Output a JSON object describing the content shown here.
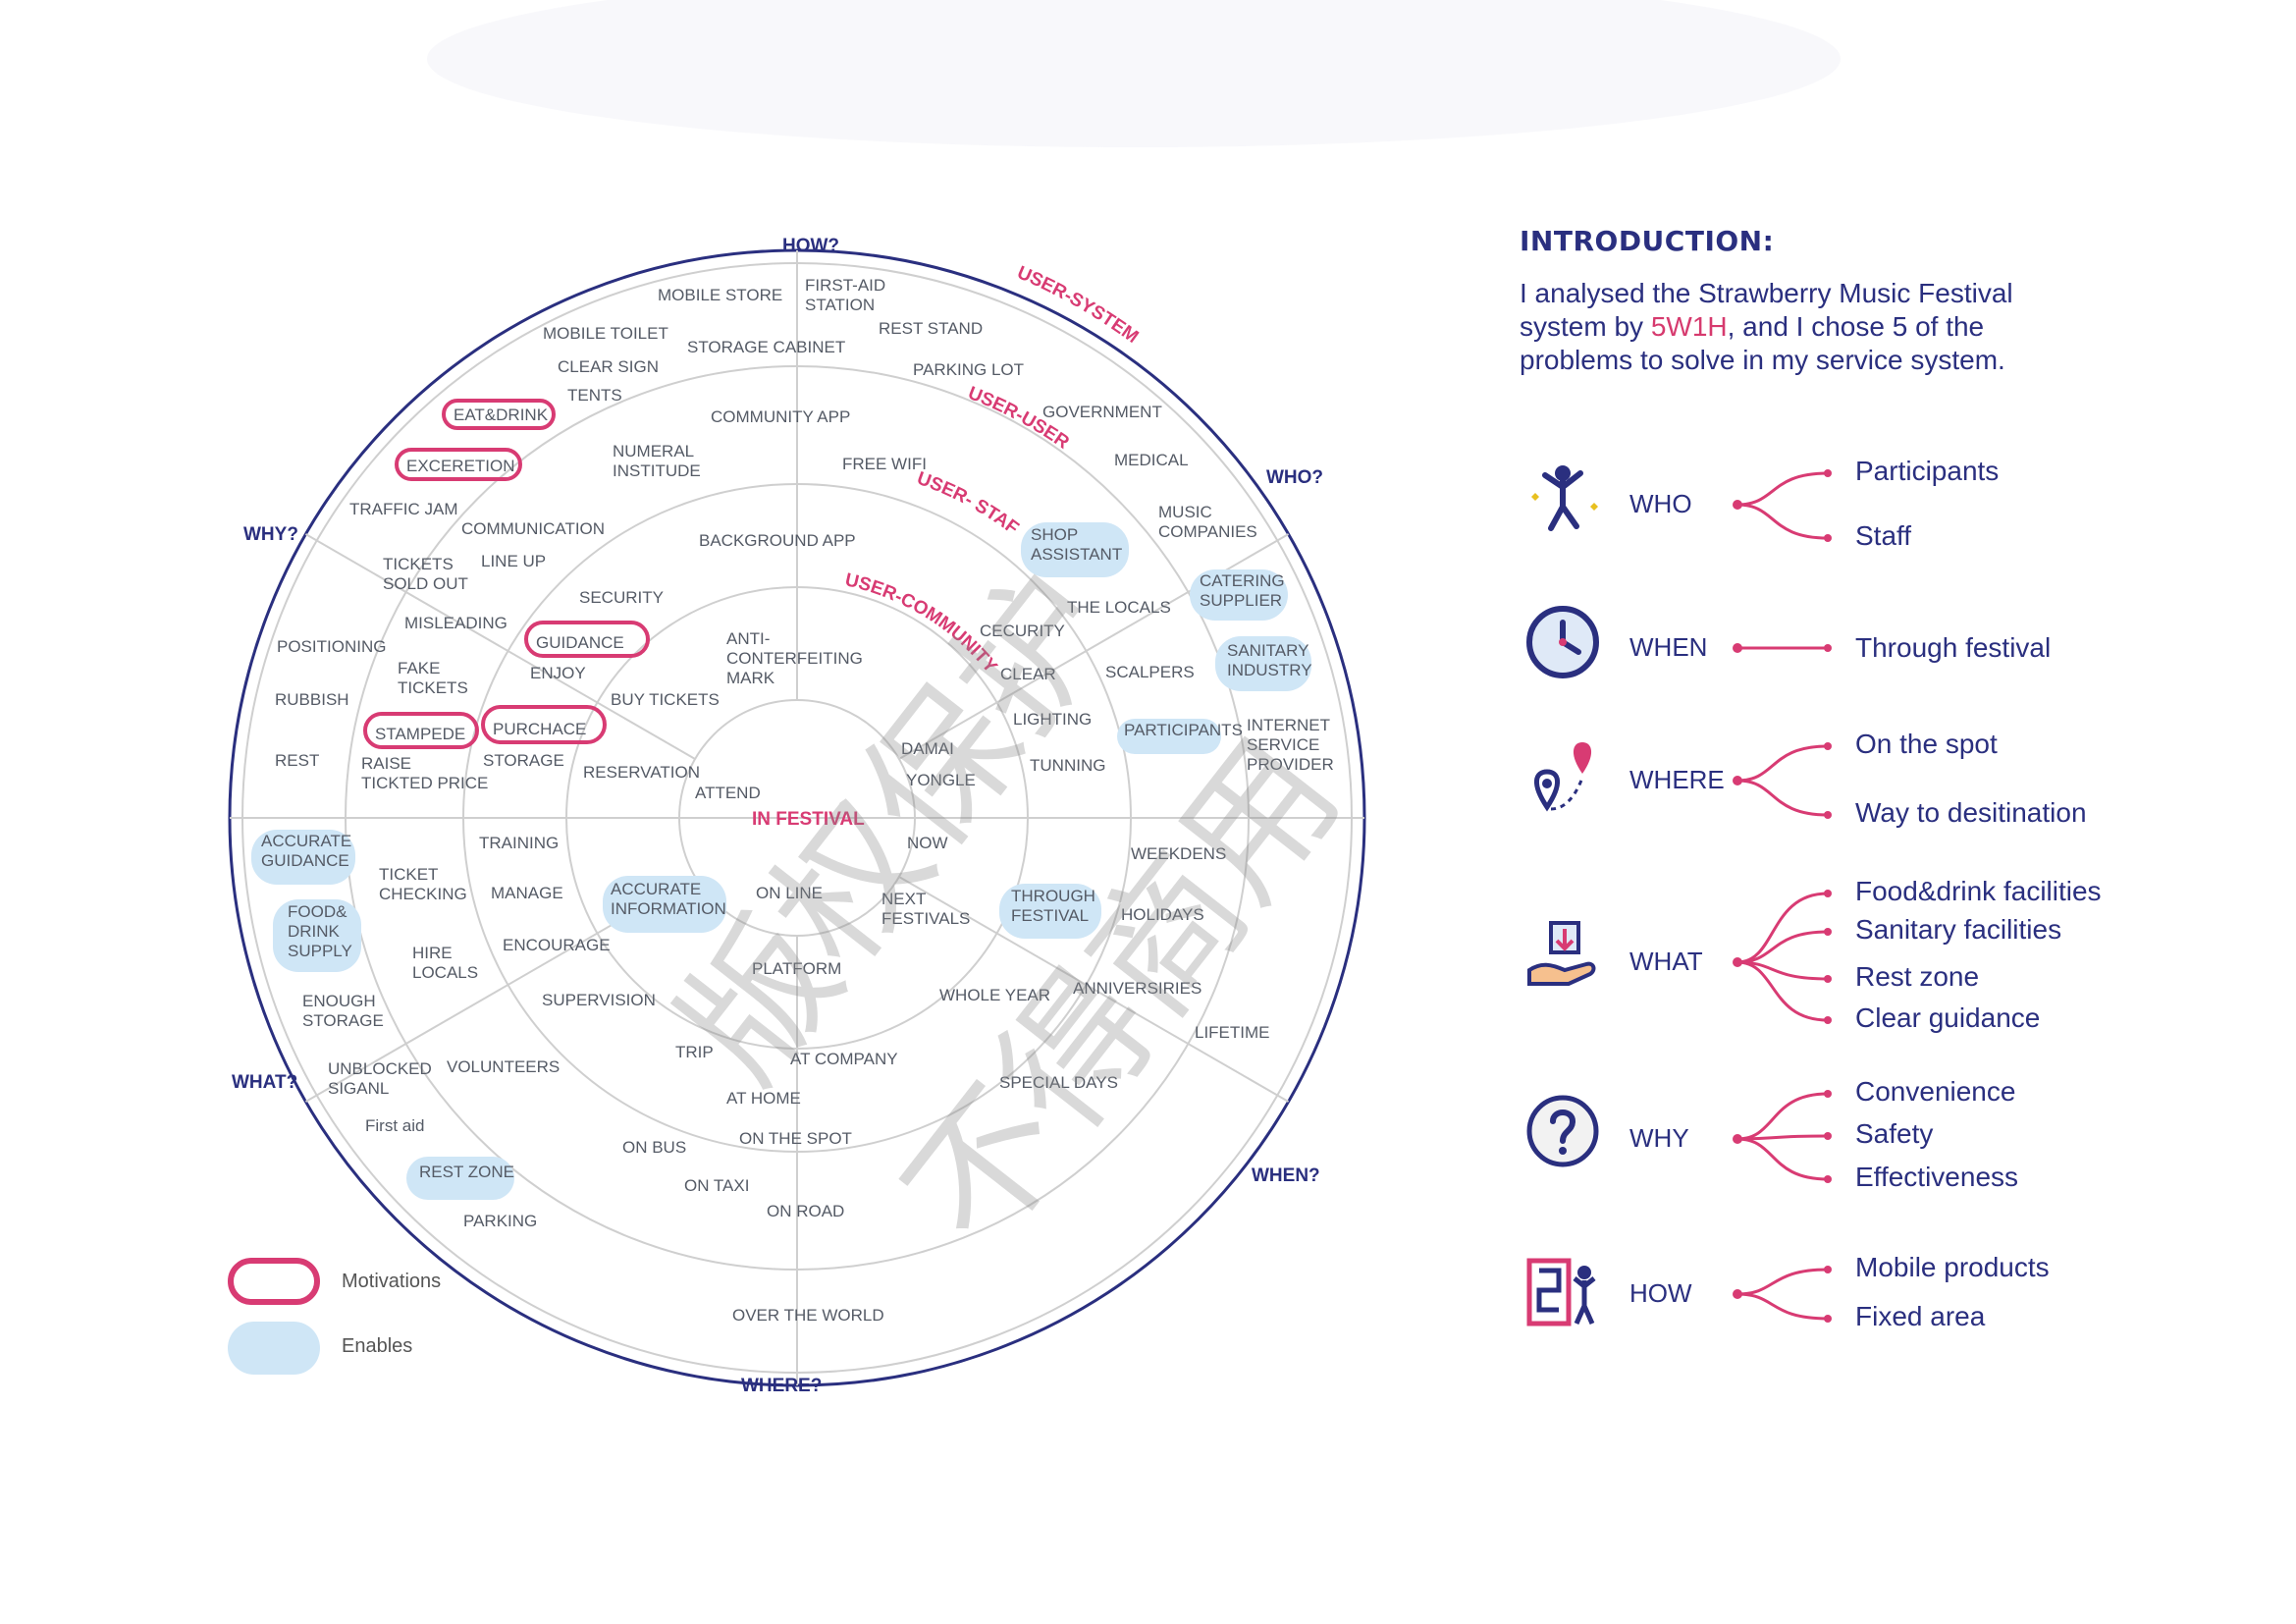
{
  "wheel": {
    "axis": {
      "how": "HOW?",
      "who": "WHO?",
      "why": "WHY?",
      "what": "WHAT?",
      "when": "WHEN?",
      "where": "WHERE?"
    },
    "user_rings": [
      "USER-SYSTEM",
      "USER-USER",
      "USER- STAFF",
      "USER-COMMUNITY"
    ],
    "center": "IN FESTIVAL",
    "words": [
      "MOBILE STORE",
      "FIRST-AID\nSTATION",
      "REST STAND",
      "STORAGE CABINET",
      "MOBILE TOILET",
      "CLEAR SIGN",
      "TENTS",
      "PARKING LOT",
      "COMMUNITY APP",
      "FREE WIFI",
      "NUMERAL\nINSTITUDE",
      "GOVERNMENT",
      "MEDICAL",
      "MUSIC\nCOMPANIES",
      "SHOP\nASSISTANT",
      "CATERING\nSUPPLIER",
      "BACKGROUND APP",
      "TRAFFIC JAM",
      "COMMUNICATION",
      "TICKETS\nSOLD OUT",
      "LINE UP",
      "SECURITY",
      "MISLEADING",
      "POSITIONING",
      "FAKE\nTICKETS",
      "ENJOY",
      "ANTI-\nCONTERFEITING\nMARK",
      "THE LOCALS",
      "SANITARY\nINDUSTRY",
      "CECURITY",
      "CLEAR",
      "SCALPERS",
      "RUBBISH",
      "BUY TICKETS",
      "LIGHTING",
      "PARTICIPANTS",
      "INTERNET\nSERVICE\nPROVIDER",
      "DAMAI",
      "REST",
      "RAISE\nTICKTED PRICE",
      "STORAGE",
      "RESERVATION",
      "ATTEND",
      "TUNNING",
      "YONGLE",
      "ACCURATE\nGUIDANCE",
      "TRAINING",
      "NOW",
      "WEEKDENS",
      "TICKET\nCHECKING",
      "MANAGE",
      "ACCURATE\nINFORMATION",
      "ON LINE",
      "NEXT\nFESTIVALS",
      "THROUGH\nFESTIVAL",
      "FOOD&\nDRINK\nSUPPLY",
      "HOLIDAYS",
      "ENCOURAGE",
      "HIRE\nLOCALS",
      "PLATFORM",
      "ENOUGH\nSTORAGE",
      "SUPERVISION",
      "WHOLE YEAR",
      "ANNIVERSIRIES",
      "LIFETIME",
      "TRIP",
      "AT COMPANY",
      "UNBLOCKED\nSIGANL",
      "VOLUNTEERS",
      "SPECIAL DAYS",
      "AT HOME",
      "First aid",
      "ON BUS",
      "ON THE SPOT",
      "REST ZONE",
      "ON TAXI",
      "ON ROAD",
      "PARKING",
      "OVER THE WORLD"
    ],
    "motivations": [
      "EAT&DRINK",
      "EXCERETION",
      "GUIDANCE",
      "STAMPEDE",
      "PURCHACE"
    ]
  },
  "legend": {
    "motivations": "Motivations",
    "enables": "Enables"
  },
  "intro": {
    "title": "INTRODUCTION:",
    "line1": "I analysed the Strawberry Music Festival",
    "line2_pre": "system by ",
    "line2_hl": "5W1H",
    "line2_post": ", and I chose  5 of  the",
    "line3": "problems to solve in my service system."
  },
  "w5h1": [
    {
      "label": "WHO",
      "icon": "dancing-person-icon",
      "items": [
        "Participants",
        "Staff"
      ]
    },
    {
      "label": "WHEN",
      "icon": "clock-icon",
      "items": [
        "Through festival"
      ]
    },
    {
      "label": "WHERE",
      "icon": "map-pin-route-icon",
      "items": [
        "On the spot",
        "Way to desitination"
      ]
    },
    {
      "label": "WHAT",
      "icon": "hand-with-box-icon",
      "items": [
        "Food&drink facilities",
        "Sanitary facilities",
        "Rest zone",
        "Clear guidance"
      ]
    },
    {
      "label": "WHY",
      "icon": "question-circle-icon",
      "items": [
        "Convenience",
        "Safety",
        "Effectiveness"
      ]
    },
    {
      "label": "HOW",
      "icon": "maze-person-icon",
      "items": [
        "Mobile products",
        "Fixed area"
      ]
    }
  ],
  "watermark": {
    "line1": "版权保护",
    "line2": "不得商用"
  },
  "colors": {
    "navy": "#2a2f7f",
    "pink": "#d83b73",
    "enable_blue": "#cfe6f6",
    "grey_line": "#cfcfcf"
  }
}
